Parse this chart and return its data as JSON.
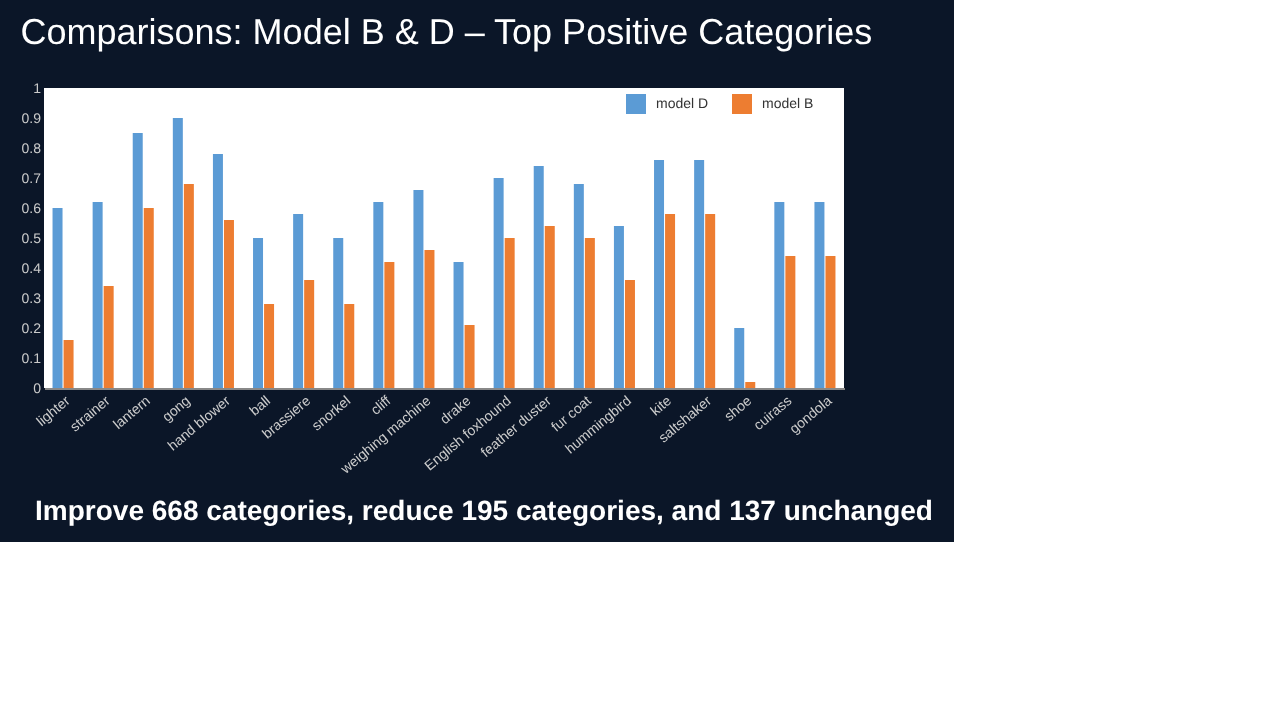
{
  "chart_data": {
    "type": "bar",
    "title": "Comparisons: Model B & D – Top Positive Categories",
    "categories": [
      "lighter",
      "strainer",
      "lantern",
      "gong",
      "hand blower",
      "ball",
      "brassiere",
      "snorkel",
      "cliff",
      "weighing machine",
      "drake",
      "English foxhound",
      "feather duster",
      "fur coat",
      "hummingbird",
      "kite",
      "saltshaker",
      "shoe",
      "cuirass",
      "gondola"
    ],
    "series": [
      {
        "name": "model D",
        "color": "#5b9bd5",
        "values": [
          0.6,
          0.62,
          0.85,
          0.9,
          0.78,
          0.5,
          0.58,
          0.5,
          0.62,
          0.66,
          0.42,
          0.7,
          0.74,
          0.68,
          0.54,
          0.76,
          0.76,
          0.2,
          0.62,
          0.62
        ]
      },
      {
        "name": "model B",
        "color": "#ed7d31",
        "values": [
          0.16,
          0.34,
          0.6,
          0.68,
          0.56,
          0.28,
          0.36,
          0.28,
          0.42,
          0.46,
          0.21,
          0.5,
          0.54,
          0.5,
          0.36,
          0.58,
          0.58,
          0.02,
          0.44,
          0.44
        ]
      }
    ],
    "ylim": [
      0,
      1
    ],
    "yticks": [
      0,
      0.1,
      0.2,
      0.3,
      0.4,
      0.5,
      0.6,
      0.7,
      0.8,
      0.9,
      1
    ],
    "grid": false,
    "legend": "top right",
    "annotations": [
      "Improve 668 categories, reduce 195 categories, and 137 unchanged"
    ]
  }
}
